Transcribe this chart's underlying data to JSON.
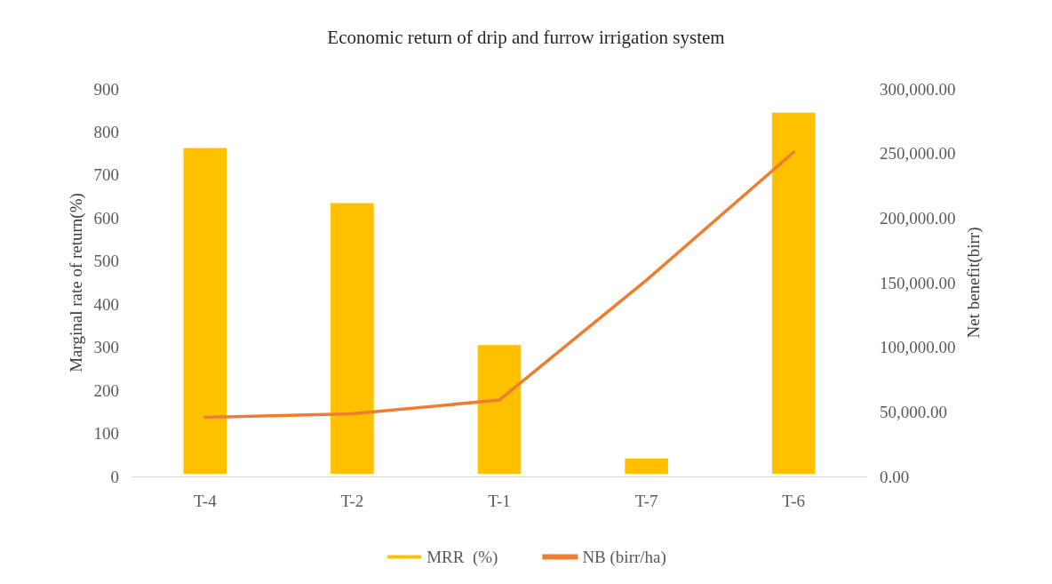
{
  "chart_data": {
    "type": "bar",
    "title": "Economic return of drip and furrow irrigation system",
    "ylabel": "Marginal rate of return(%)",
    "y2label": "Net benefit(birr)",
    "categories": [
      "T-4",
      "T-2",
      "T-1",
      "T-7",
      "T-6"
    ],
    "series": [
      {
        "name": "MRR  (%)",
        "color": "#ffc000",
        "values": [
          769,
          641,
          311,
          48,
          851
        ]
      },
      {
        "name": "NB (birr/ha)",
        "type": "line",
        "axis": "y2",
        "color": "#ed7d31",
        "values": [
          45800,
          48500,
          59100,
          152000,
          251000
        ]
      }
    ],
    "ylim": [
      0,
      900
    ],
    "yticks": [
      0,
      100,
      200,
      300,
      400,
      500,
      600,
      700,
      800,
      900
    ],
    "y2lim": [
      0,
      300000
    ],
    "y2ticks": [
      {
        "value": 0,
        "label": "0.00"
      },
      {
        "value": 50000,
        "label": "50,000.00"
      },
      {
        "value": 100000,
        "label": "100,000.00"
      },
      {
        "value": 150000,
        "label": "150,000.00"
      },
      {
        "value": 200000,
        "label": "200,000.00"
      },
      {
        "value": 250000,
        "label": "250,000.00"
      },
      {
        "value": 300000,
        "label": "300,000.00"
      }
    ],
    "grid": false,
    "legend": "bottom",
    "marker": "none",
    "line_style": "solid"
  }
}
